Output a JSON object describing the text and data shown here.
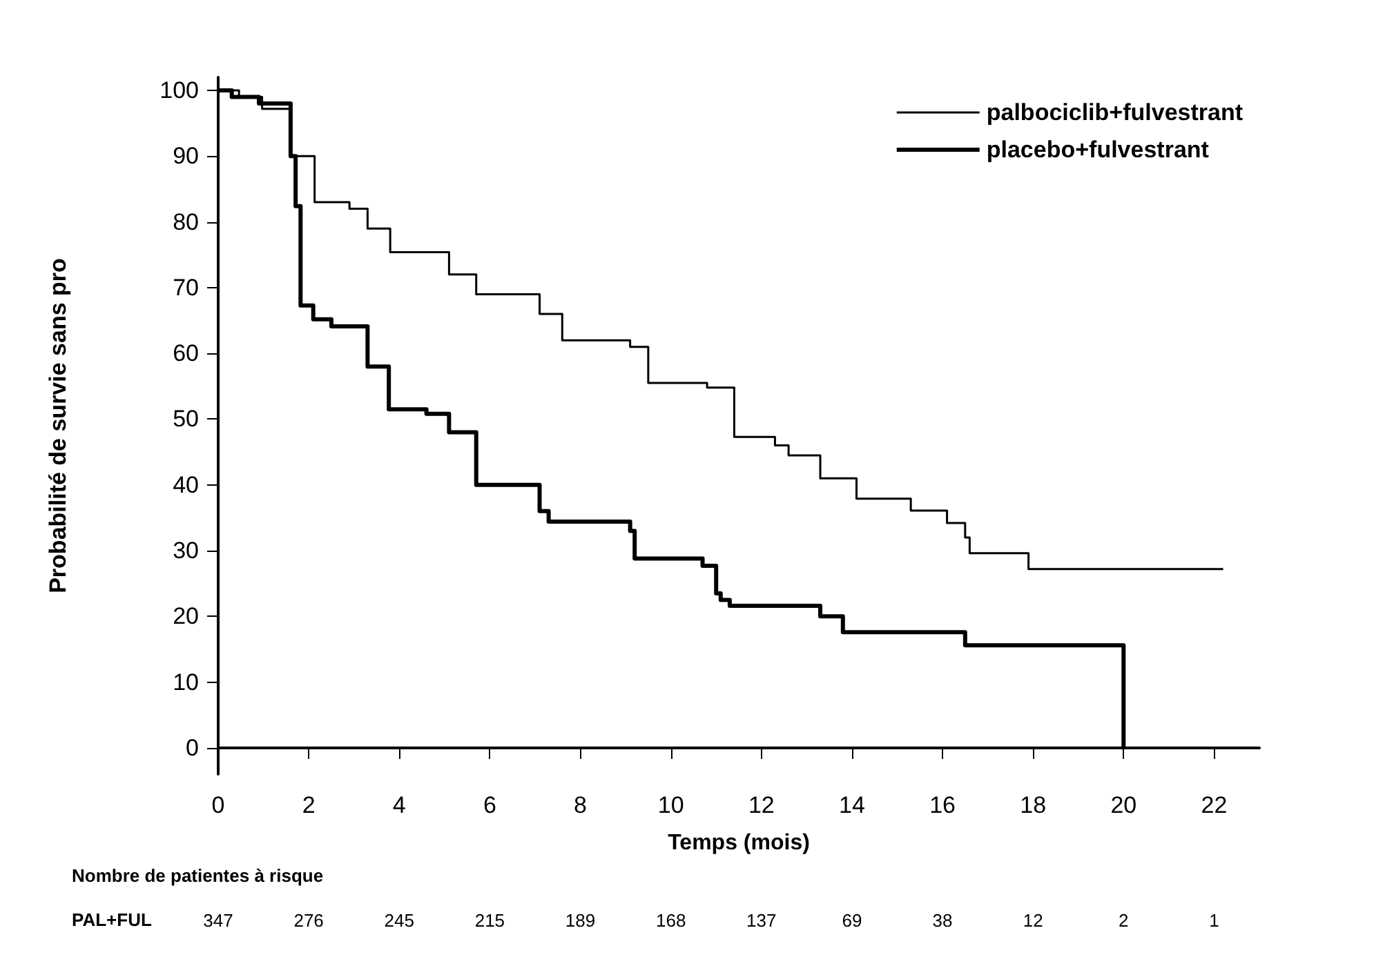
{
  "chart_data": {
    "type": "step",
    "xlabel": "Temps (mois)",
    "ylabel": "Probabilité de survie sans pro",
    "xlim": [
      0,
      23
    ],
    "xticks": [
      0,
      2,
      4,
      6,
      8,
      10,
      12,
      14,
      16,
      18,
      20,
      22
    ],
    "ylim": [
      -4,
      102
    ],
    "yticks": [
      0,
      10,
      20,
      30,
      40,
      50,
      60,
      70,
      80,
      90,
      100
    ],
    "grid": false,
    "legend": "top right",
    "series": [
      {
        "name": "palbociclib+fulvestrant",
        "color": "#000000",
        "x": [
          0,
          0.46,
          0.97,
          1.58,
          2.13,
          2.9,
          3.3,
          3.8,
          5.1,
          5.7,
          7.1,
          7.6,
          9.1,
          9.5,
          10.8,
          11.4,
          12.3,
          12.6,
          13.3,
          14.1,
          15.3,
          16.1,
          16.5,
          16.6,
          17.9,
          22.2
        ],
        "values": [
          100,
          99,
          97.2,
          90,
          83,
          82,
          79,
          75.4,
          72,
          69,
          66,
          62,
          61,
          55.5,
          54.8,
          47.3,
          46,
          44.5,
          41,
          37.9,
          36.1,
          34.2,
          32,
          29.6,
          27.2,
          27.2
        ]
      },
      {
        "name": "placebo+fulvestrant",
        "color": "#000000",
        "x": [
          0,
          0.3,
          0.9,
          1.6,
          1.71,
          1.82,
          2.1,
          2.5,
          3.3,
          3.77,
          4.6,
          5.1,
          5.7,
          7.1,
          7.3,
          9.1,
          9.2,
          10.7,
          11.0,
          11.1,
          11.3,
          13.3,
          13.8,
          16.5,
          19.9,
          20.0
        ],
        "values": [
          100,
          99,
          98,
          90,
          82.4,
          67.3,
          65.2,
          64.1,
          58,
          51.5,
          50.8,
          48,
          40,
          36,
          34.4,
          33,
          28.8,
          27.7,
          23.5,
          22.5,
          21.6,
          20,
          17.6,
          15.6,
          15.6,
          0
        ]
      }
    ],
    "annotations": [
      "Nombre de patientes à risque",
      "PAL+FUL",
      "347",
      "276",
      "245",
      "215",
      "189",
      "168",
      "137",
      "69",
      "38",
      "12",
      "2",
      "1"
    ]
  }
}
